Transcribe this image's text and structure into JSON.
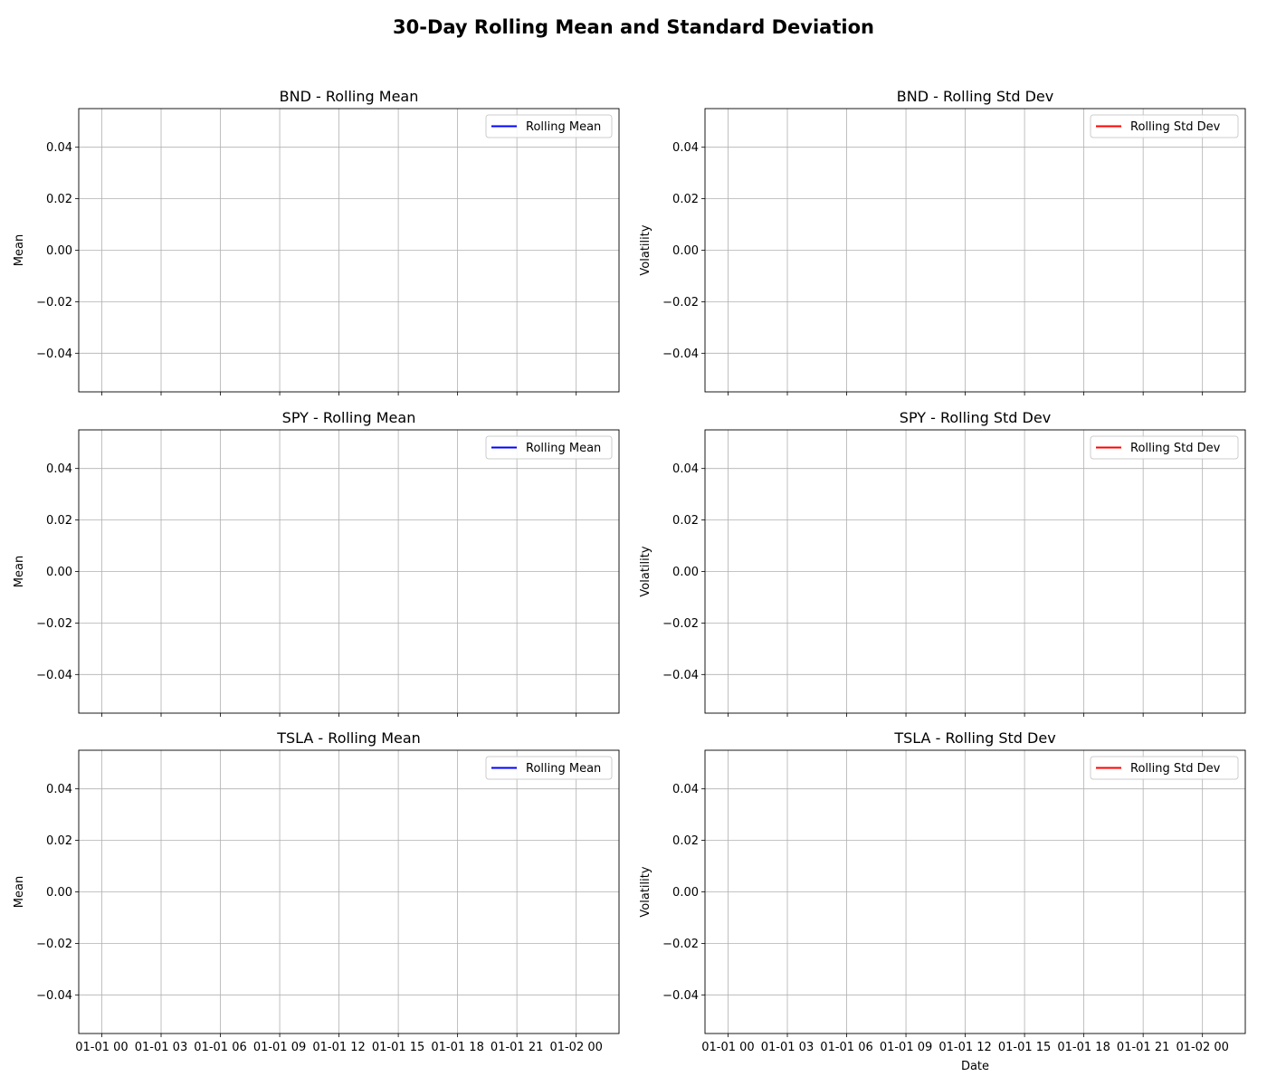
{
  "figure": {
    "title": "30-Day Rolling Mean and Standard Deviation"
  },
  "chart_data": [
    {
      "type": "line",
      "title": "BND - Rolling Mean",
      "xlabel": "",
      "ylabel": "Mean",
      "xlim": [
        "2024-12-31T22:50",
        "2025-01-02T02:10"
      ],
      "ylim": [
        -0.055,
        0.055
      ],
      "x_ticks": [
        "01-01 00",
        "01-01 03",
        "01-01 06",
        "01-01 09",
        "01-01 12",
        "01-01 15",
        "01-01 18",
        "01-01 21",
        "01-02 00"
      ],
      "y_ticks": [
        0.04,
        0.02,
        0.0,
        -0.02,
        -0.04
      ],
      "y_tick_labels": [
        "0.04",
        "0.02",
        "0.00",
        "−0.02",
        "−0.04"
      ],
      "show_x_tick_labels": false,
      "grid": true,
      "legend": "top-right",
      "series": [
        {
          "name": "Rolling Mean",
          "color": "#0000ff",
          "values": []
        }
      ]
    },
    {
      "type": "line",
      "title": "BND - Rolling Std Dev",
      "xlabel": "",
      "ylabel": "Volatility",
      "xlim": [
        "2024-12-31T22:50",
        "2025-01-02T02:10"
      ],
      "ylim": [
        -0.055,
        0.055
      ],
      "x_ticks": [
        "01-01 00",
        "01-01 03",
        "01-01 06",
        "01-01 09",
        "01-01 12",
        "01-01 15",
        "01-01 18",
        "01-01 21",
        "01-02 00"
      ],
      "y_ticks": [
        0.04,
        0.02,
        0.0,
        -0.02,
        -0.04
      ],
      "y_tick_labels": [
        "0.04",
        "0.02",
        "0.00",
        "−0.02",
        "−0.04"
      ],
      "show_x_tick_labels": false,
      "grid": true,
      "legend": "top-right",
      "series": [
        {
          "name": "Rolling Std Dev",
          "color": "#ff0000",
          "values": []
        }
      ]
    },
    {
      "type": "line",
      "title": "SPY - Rolling Mean",
      "xlabel": "",
      "ylabel": "Mean",
      "xlim": [
        "2024-12-31T22:50",
        "2025-01-02T02:10"
      ],
      "ylim": [
        -0.055,
        0.055
      ],
      "x_ticks": [
        "01-01 00",
        "01-01 03",
        "01-01 06",
        "01-01 09",
        "01-01 12",
        "01-01 15",
        "01-01 18",
        "01-01 21",
        "01-02 00"
      ],
      "y_ticks": [
        0.04,
        0.02,
        0.0,
        -0.02,
        -0.04
      ],
      "y_tick_labels": [
        "0.04",
        "0.02",
        "0.00",
        "−0.02",
        "−0.04"
      ],
      "show_x_tick_labels": false,
      "grid": true,
      "legend": "top-right",
      "series": [
        {
          "name": "Rolling Mean",
          "color": "#0000ff",
          "values": []
        }
      ]
    },
    {
      "type": "line",
      "title": "SPY - Rolling Std Dev",
      "xlabel": "",
      "ylabel": "Volatility",
      "xlim": [
        "2024-12-31T22:50",
        "2025-01-02T02:10"
      ],
      "ylim": [
        -0.055,
        0.055
      ],
      "x_ticks": [
        "01-01 00",
        "01-01 03",
        "01-01 06",
        "01-01 09",
        "01-01 12",
        "01-01 15",
        "01-01 18",
        "01-01 21",
        "01-02 00"
      ],
      "y_ticks": [
        0.04,
        0.02,
        0.0,
        -0.02,
        -0.04
      ],
      "y_tick_labels": [
        "0.04",
        "0.02",
        "0.00",
        "−0.02",
        "−0.04"
      ],
      "show_x_tick_labels": false,
      "grid": true,
      "legend": "top-right",
      "series": [
        {
          "name": "Rolling Std Dev",
          "color": "#ff0000",
          "values": []
        }
      ]
    },
    {
      "type": "line",
      "title": "TSLA - Rolling Mean",
      "xlabel": "",
      "ylabel": "Mean",
      "xlim": [
        "2024-12-31T22:50",
        "2025-01-02T02:10"
      ],
      "ylim": [
        -0.055,
        0.055
      ],
      "x_ticks": [
        "01-01 00",
        "01-01 03",
        "01-01 06",
        "01-01 09",
        "01-01 12",
        "01-01 15",
        "01-01 18",
        "01-01 21",
        "01-02 00"
      ],
      "y_ticks": [
        0.04,
        0.02,
        0.0,
        -0.02,
        -0.04
      ],
      "y_tick_labels": [
        "0.04",
        "0.02",
        "0.00",
        "−0.02",
        "−0.04"
      ],
      "show_x_tick_labels": true,
      "grid": true,
      "legend": "top-right",
      "series": [
        {
          "name": "Rolling Mean",
          "color": "#0000ff",
          "values": []
        }
      ]
    },
    {
      "type": "line",
      "title": "TSLA - Rolling Std Dev",
      "xlabel": "Date",
      "ylabel": "Volatility",
      "xlim": [
        "2024-12-31T22:50",
        "2025-01-02T02:10"
      ],
      "ylim": [
        -0.055,
        0.055
      ],
      "x_ticks": [
        "01-01 00",
        "01-01 03",
        "01-01 06",
        "01-01 09",
        "01-01 12",
        "01-01 15",
        "01-01 18",
        "01-01 21",
        "01-02 00"
      ],
      "y_ticks": [
        0.04,
        0.02,
        0.0,
        -0.02,
        -0.04
      ],
      "y_tick_labels": [
        "0.04",
        "0.02",
        "0.00",
        "−0.02",
        "−0.04"
      ],
      "show_x_tick_labels": true,
      "grid": true,
      "legend": "top-right",
      "series": [
        {
          "name": "Rolling Std Dev",
          "color": "#ff0000",
          "values": []
        }
      ]
    }
  ]
}
